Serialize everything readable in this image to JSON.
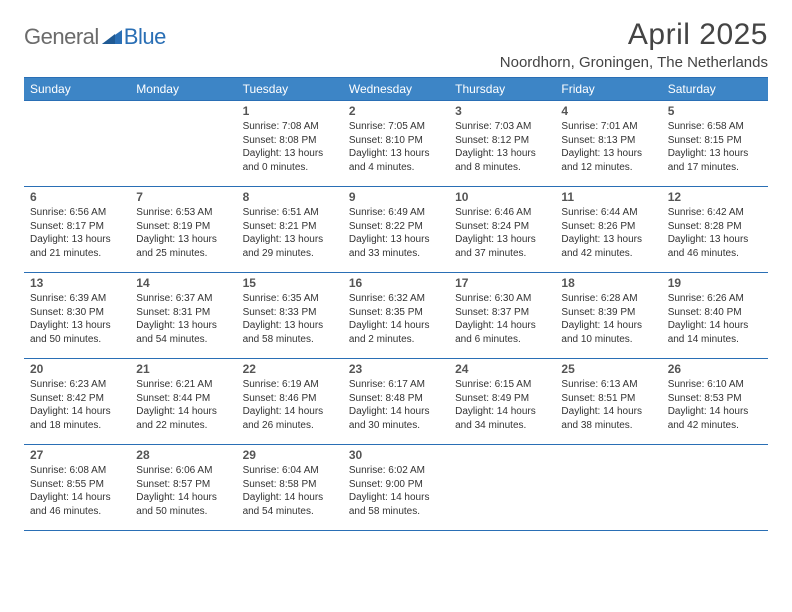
{
  "brand": {
    "general": "General",
    "blue": "Blue"
  },
  "title": "April 2025",
  "location": "Noordhorn, Groningen, The Netherlands",
  "colors": {
    "header_bg": "#3d85c6",
    "header_text": "#ffffff",
    "border": "#2a6fb5",
    "page_bg": "#ffffff",
    "body_text": "#333333",
    "title_text": "#444444",
    "logo_gray": "#6b6b6b",
    "logo_blue": "#2a6fb5"
  },
  "fonts": {
    "family": "Arial, Helvetica, sans-serif",
    "title_size_pt": 22,
    "location_size_pt": 11,
    "dayhead_size_pt": 9,
    "daynum_size_pt": 9,
    "daytext_size_pt": 7.5
  },
  "day_headers": [
    "Sunday",
    "Monday",
    "Tuesday",
    "Wednesday",
    "Thursday",
    "Friday",
    "Saturday"
  ],
  "weeks": [
    [
      {
        "n": "",
        "t": ""
      },
      {
        "n": "",
        "t": ""
      },
      {
        "n": "1",
        "t": "Sunrise: 7:08 AM\nSunset: 8:08 PM\nDaylight: 13 hours\nand 0 minutes."
      },
      {
        "n": "2",
        "t": "Sunrise: 7:05 AM\nSunset: 8:10 PM\nDaylight: 13 hours\nand 4 minutes."
      },
      {
        "n": "3",
        "t": "Sunrise: 7:03 AM\nSunset: 8:12 PM\nDaylight: 13 hours\nand 8 minutes."
      },
      {
        "n": "4",
        "t": "Sunrise: 7:01 AM\nSunset: 8:13 PM\nDaylight: 13 hours\nand 12 minutes."
      },
      {
        "n": "5",
        "t": "Sunrise: 6:58 AM\nSunset: 8:15 PM\nDaylight: 13 hours\nand 17 minutes."
      }
    ],
    [
      {
        "n": "6",
        "t": "Sunrise: 6:56 AM\nSunset: 8:17 PM\nDaylight: 13 hours\nand 21 minutes."
      },
      {
        "n": "7",
        "t": "Sunrise: 6:53 AM\nSunset: 8:19 PM\nDaylight: 13 hours\nand 25 minutes."
      },
      {
        "n": "8",
        "t": "Sunrise: 6:51 AM\nSunset: 8:21 PM\nDaylight: 13 hours\nand 29 minutes."
      },
      {
        "n": "9",
        "t": "Sunrise: 6:49 AM\nSunset: 8:22 PM\nDaylight: 13 hours\nand 33 minutes."
      },
      {
        "n": "10",
        "t": "Sunrise: 6:46 AM\nSunset: 8:24 PM\nDaylight: 13 hours\nand 37 minutes."
      },
      {
        "n": "11",
        "t": "Sunrise: 6:44 AM\nSunset: 8:26 PM\nDaylight: 13 hours\nand 42 minutes."
      },
      {
        "n": "12",
        "t": "Sunrise: 6:42 AM\nSunset: 8:28 PM\nDaylight: 13 hours\nand 46 minutes."
      }
    ],
    [
      {
        "n": "13",
        "t": "Sunrise: 6:39 AM\nSunset: 8:30 PM\nDaylight: 13 hours\nand 50 minutes."
      },
      {
        "n": "14",
        "t": "Sunrise: 6:37 AM\nSunset: 8:31 PM\nDaylight: 13 hours\nand 54 minutes."
      },
      {
        "n": "15",
        "t": "Sunrise: 6:35 AM\nSunset: 8:33 PM\nDaylight: 13 hours\nand 58 minutes."
      },
      {
        "n": "16",
        "t": "Sunrise: 6:32 AM\nSunset: 8:35 PM\nDaylight: 14 hours\nand 2 minutes."
      },
      {
        "n": "17",
        "t": "Sunrise: 6:30 AM\nSunset: 8:37 PM\nDaylight: 14 hours\nand 6 minutes."
      },
      {
        "n": "18",
        "t": "Sunrise: 6:28 AM\nSunset: 8:39 PM\nDaylight: 14 hours\nand 10 minutes."
      },
      {
        "n": "19",
        "t": "Sunrise: 6:26 AM\nSunset: 8:40 PM\nDaylight: 14 hours\nand 14 minutes."
      }
    ],
    [
      {
        "n": "20",
        "t": "Sunrise: 6:23 AM\nSunset: 8:42 PM\nDaylight: 14 hours\nand 18 minutes."
      },
      {
        "n": "21",
        "t": "Sunrise: 6:21 AM\nSunset: 8:44 PM\nDaylight: 14 hours\nand 22 minutes."
      },
      {
        "n": "22",
        "t": "Sunrise: 6:19 AM\nSunset: 8:46 PM\nDaylight: 14 hours\nand 26 minutes."
      },
      {
        "n": "23",
        "t": "Sunrise: 6:17 AM\nSunset: 8:48 PM\nDaylight: 14 hours\nand 30 minutes."
      },
      {
        "n": "24",
        "t": "Sunrise: 6:15 AM\nSunset: 8:49 PM\nDaylight: 14 hours\nand 34 minutes."
      },
      {
        "n": "25",
        "t": "Sunrise: 6:13 AM\nSunset: 8:51 PM\nDaylight: 14 hours\nand 38 minutes."
      },
      {
        "n": "26",
        "t": "Sunrise: 6:10 AM\nSunset: 8:53 PM\nDaylight: 14 hours\nand 42 minutes."
      }
    ],
    [
      {
        "n": "27",
        "t": "Sunrise: 6:08 AM\nSunset: 8:55 PM\nDaylight: 14 hours\nand 46 minutes."
      },
      {
        "n": "28",
        "t": "Sunrise: 6:06 AM\nSunset: 8:57 PM\nDaylight: 14 hours\nand 50 minutes."
      },
      {
        "n": "29",
        "t": "Sunrise: 6:04 AM\nSunset: 8:58 PM\nDaylight: 14 hours\nand 54 minutes."
      },
      {
        "n": "30",
        "t": "Sunrise: 6:02 AM\nSunset: 9:00 PM\nDaylight: 14 hours\nand 58 minutes."
      },
      {
        "n": "",
        "t": ""
      },
      {
        "n": "",
        "t": ""
      },
      {
        "n": "",
        "t": ""
      }
    ]
  ]
}
